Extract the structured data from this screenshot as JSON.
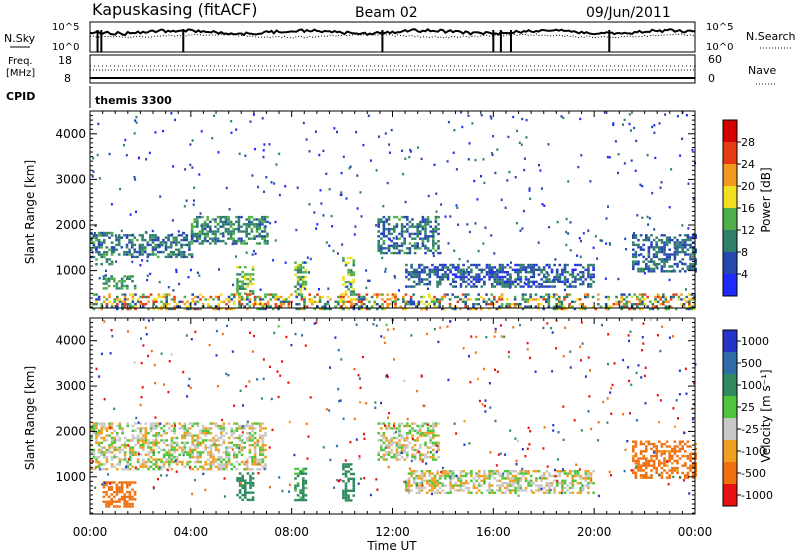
{
  "header": {
    "station": "Kapuskasing (fitACF)",
    "beam": "Beam 02",
    "date": "09/Jun/2011"
  },
  "noise_panel": {
    "left_label": "N.Sky",
    "right_label": "N.Search",
    "ticks_left": [
      "10^5",
      "10^0"
    ],
    "ticks_right": [
      "10^5",
      "10^0"
    ]
  },
  "freq_panel": {
    "left_label_line1": "Freq.",
    "left_label_line2": "[MHz]",
    "ticks_left": [
      "18",
      "8"
    ],
    "right_label": "Nave",
    "ticks_right": [
      "60",
      "0"
    ]
  },
  "cpid": {
    "label": "CPID",
    "value": "themis 3300"
  },
  "axes": {
    "xlabel": "Time UT",
    "x_ticks": [
      "00:00",
      "04:00",
      "08:00",
      "12:00",
      "16:00",
      "20:00",
      "00:00"
    ],
    "ylabel": "Slant Range [km]",
    "y_ticks": [
      "1000",
      "2000",
      "3000",
      "4000"
    ]
  },
  "power_scale": {
    "label": "Power [dB]",
    "ticks": [
      "4",
      "8",
      "12",
      "16",
      "20",
      "24",
      "28"
    ],
    "colors": [
      "#1f2aff",
      "#2747b0",
      "#2f7f6a",
      "#4fb04a",
      "#f0e020",
      "#f39a1e",
      "#e83a12",
      "#d40000"
    ]
  },
  "velocity_scale": {
    "label": "Velocity [m s⁻¹]",
    "ticks": [
      "1000",
      "500",
      "100",
      "25",
      "-25",
      "-100",
      "-500",
      "-1000"
    ],
    "colors": [
      "#2433c8",
      "#2f6da8",
      "#2e8a5e",
      "#4fc43c",
      "#c8c8c8",
      "#f0a020",
      "#f07010",
      "#e81010"
    ]
  },
  "chart_data": [
    {
      "type": "heatmap",
      "title": "Power",
      "xlabel": "Time UT",
      "ylabel": "Slant Range [km]",
      "x_range_hours": [
        0,
        24
      ],
      "y_range_km": [
        180,
        4500
      ],
      "colorbar": {
        "label": "Power [dB]",
        "range": [
          0,
          30
        ],
        "ticks": [
          4,
          8,
          12,
          16,
          20,
          24,
          28
        ]
      },
      "regions": [
        {
          "t": [
            0.0,
            0.9
          ],
          "r": [
            1150,
            1850
          ],
          "level_db": 10
        },
        {
          "t": [
            0.9,
            4.0
          ],
          "r": [
            1300,
            1800
          ],
          "level_db": 9
        },
        {
          "t": [
            4.0,
            7.0
          ],
          "r": [
            1600,
            2200
          ],
          "level_db": 10
        },
        {
          "t": [
            0.5,
            1.8
          ],
          "r": [
            600,
            900
          ],
          "level_db": 12
        },
        {
          "t": [
            5.8,
            6.5
          ],
          "r": [
            500,
            1100
          ],
          "level_db": 14
        },
        {
          "t": [
            8.1,
            8.6
          ],
          "r": [
            500,
            1200
          ],
          "level_db": 14
        },
        {
          "t": [
            10.0,
            10.5
          ],
          "r": [
            500,
            1300
          ],
          "level_db": 15
        },
        {
          "t": [
            11.4,
            13.8
          ],
          "r": [
            1400,
            2200
          ],
          "level_db": 9
        },
        {
          "t": [
            12.5,
            20.0
          ],
          "r": [
            650,
            1150
          ],
          "level_db": 7
        },
        {
          "t": [
            21.5,
            24.0
          ],
          "r": [
            1000,
            1800
          ],
          "level_db": 8
        },
        {
          "t": [
            0.0,
            24.0
          ],
          "r": [
            180,
            500
          ],
          "level_db": 16
        }
      ]
    },
    {
      "type": "heatmap",
      "title": "Velocity",
      "xlabel": "Time UT",
      "ylabel": "Slant Range [km]",
      "x_range_hours": [
        0,
        24
      ],
      "y_range_km": [
        180,
        4500
      ],
      "colorbar": {
        "label": "Velocity [m s-1]",
        "ticks": [
          1000,
          500,
          100,
          25,
          -25,
          -100,
          -500,
          -1000
        ]
      },
      "regions": [
        {
          "t": [
            0.0,
            7.0
          ],
          "r": [
            1150,
            2200
          ],
          "velocity": 0
        },
        {
          "t": [
            0.5,
            1.8
          ],
          "r": [
            350,
            900
          ],
          "velocity": -400
        },
        {
          "t": [
            5.8,
            6.5
          ],
          "r": [
            500,
            1100
          ],
          "velocity": 200
        },
        {
          "t": [
            8.1,
            8.6
          ],
          "r": [
            500,
            1200
          ],
          "velocity": 80
        },
        {
          "t": [
            10.0,
            10.5
          ],
          "r": [
            500,
            1300
          ],
          "velocity": 120
        },
        {
          "t": [
            11.4,
            13.8
          ],
          "r": [
            1400,
            2200
          ],
          "velocity": 0
        },
        {
          "t": [
            12.5,
            20.0
          ],
          "r": [
            650,
            1150
          ],
          "velocity": 0
        },
        {
          "t": [
            21.5,
            24.0
          ],
          "r": [
            1000,
            1800
          ],
          "velocity": -150
        }
      ]
    }
  ]
}
